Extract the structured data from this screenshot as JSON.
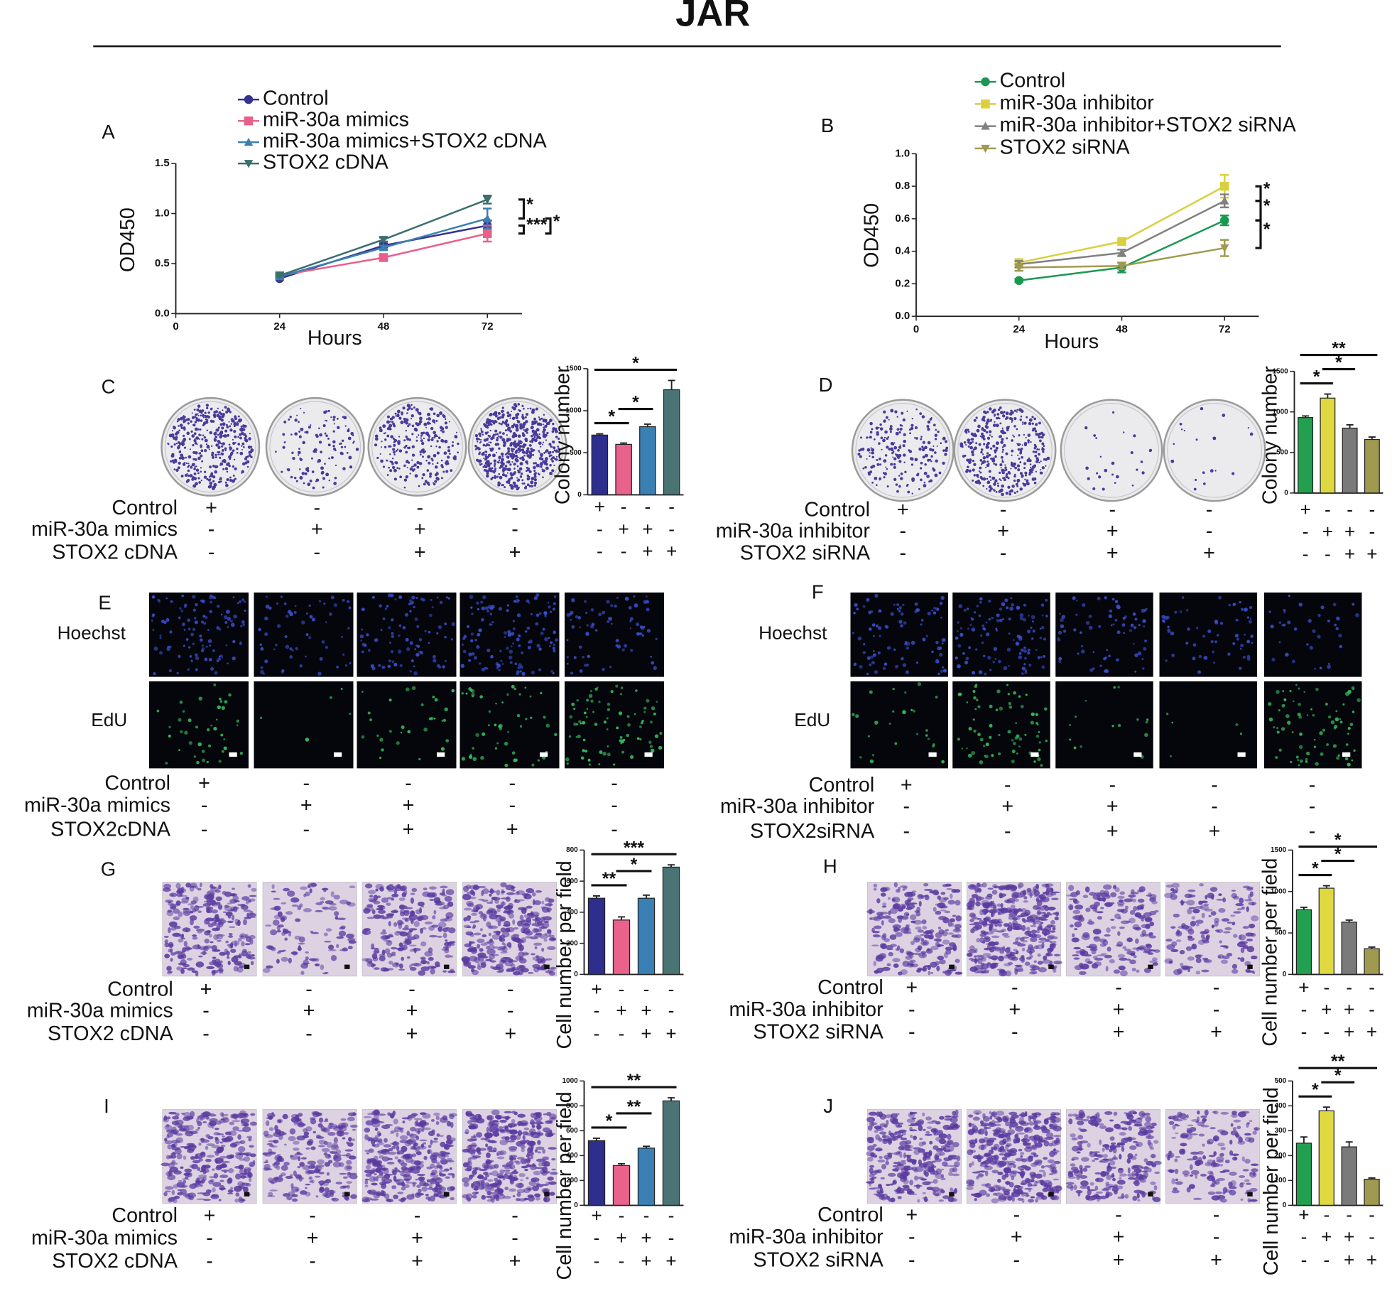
{
  "title": "JAR",
  "chart_data": [
    {
      "type": "line",
      "label": "A",
      "x_label": "Hours",
      "y_label": "OD450",
      "x": [
        24,
        48,
        72
      ],
      "xlim": [
        0,
        80
      ],
      "xticks": [
        0,
        24,
        48,
        72
      ],
      "ylim": [
        0,
        1.5
      ],
      "yticks": [
        {
          "value": 0,
          "label": "0.0"
        },
        {
          "value": 0.5,
          "label": "0.5"
        },
        {
          "value": 1,
          "label": "1.0"
        },
        {
          "value": 1.5,
          "label": "1.5"
        }
      ],
      "series": [
        {
          "name": "Control",
          "color": "#33338f",
          "marker": "circle",
          "values": [
            0.35,
            0.68,
            0.88
          ],
          "errors": [
            0.01,
            0.02,
            0.05
          ]
        },
        {
          "name": "miR-30a mimics",
          "color": "#e8608a",
          "marker": "square",
          "values": [
            0.38,
            0.56,
            0.8
          ],
          "errors": [
            0.01,
            0.02,
            0.08
          ]
        },
        {
          "name": "miR-30a mimics+STOX2 cDNA",
          "color": "#3a80b0",
          "marker": "triangle",
          "values": [
            0.37,
            0.66,
            0.95
          ],
          "errors": [
            0.02,
            0.02,
            0.1
          ]
        },
        {
          "name": "STOX2 cDNA",
          "color": "#3c6e6e",
          "marker": "triangle-down",
          "values": [
            0.38,
            0.74,
            1.14
          ],
          "errors": [
            0.01,
            0.02,
            0.04
          ]
        }
      ],
      "annotations": [
        {
          "text": "*",
          "from": 3,
          "to": 2
        },
        {
          "text": "***",
          "from": 0,
          "to": 1
        },
        {
          "text": "*",
          "from": 2,
          "to": 1
        }
      ]
    },
    {
      "type": "line",
      "label": "B",
      "x_label": "Hours",
      "y_label": "OD450",
      "x": [
        24,
        48,
        72
      ],
      "xlim": [
        0,
        80
      ],
      "xticks": [
        0,
        24,
        48,
        72
      ],
      "ylim": [
        0,
        1
      ],
      "yticks": [
        {
          "value": 0,
          "label": "0.0"
        },
        0.2,
        0.4,
        0.6,
        0.8,
        {
          "value": 1,
          "label": "1.0"
        }
      ],
      "series": [
        {
          "name": "Control",
          "color": "#1a9850",
          "marker": "circle",
          "values": [
            0.22,
            0.3,
            0.59
          ],
          "errors": [
            0.01,
            0.03,
            0.03
          ]
        },
        {
          "name": "miR-30a inhibitor",
          "color": "#d8d040",
          "marker": "square",
          "values": [
            0.33,
            0.46,
            0.8
          ],
          "errors": [
            0.02,
            0.01,
            0.07
          ]
        },
        {
          "name": "miR-30a inhibitor+STOX2 siRNA",
          "color": "#808080",
          "marker": "triangle",
          "values": [
            0.32,
            0.39,
            0.71
          ],
          "errors": [
            0.02,
            0.02,
            0.04
          ]
        },
        {
          "name": "STOX2 siRNA",
          "color": "#a09a50",
          "marker": "triangle-down",
          "values": [
            0.3,
            0.31,
            0.42
          ],
          "errors": [
            0.02,
            0.02,
            0.05
          ]
        }
      ],
      "annotations": [
        {
          "text": "*",
          "from": 1,
          "to": 2
        },
        {
          "text": "*",
          "from": 2,
          "to": 0
        },
        {
          "text": "*",
          "from": 0,
          "to": 3
        }
      ]
    },
    {
      "type": "bar",
      "label": "C",
      "y_label": "Colony number",
      "values": [
        710,
        600,
        810,
        1250
      ],
      "errors": [
        15,
        15,
        30,
        110
      ],
      "colors": [
        "#2e2e8e",
        "#e8628c",
        "#3a80b4",
        "#4a7474"
      ],
      "ylim": [
        0,
        1500
      ],
      "yticks": [
        0,
        500,
        1000,
        1500
      ],
      "conditions": [
        [
          "+",
          "-",
          "-",
          "-"
        ],
        [
          "-",
          "+",
          "+",
          "-"
        ],
        [
          "-",
          "-",
          "+",
          "+"
        ]
      ],
      "annotations": [
        {
          "text": "*",
          "from": 0,
          "to": 1
        },
        {
          "text": "*",
          "from": 1,
          "to": 2
        },
        {
          "text": "*",
          "from": 0,
          "to": 3
        }
      ]
    },
    {
      "type": "bar",
      "label": "D",
      "y_label": "Colony number",
      "values": [
        930,
        1170,
        800,
        660
      ],
      "errors": [
        20,
        50,
        40,
        30
      ],
      "colors": [
        "#22a050",
        "#e0d840",
        "#7a7a7a",
        "#a09a50"
      ],
      "ylim": [
        0,
        1500
      ],
      "yticks": [
        0,
        500,
        1000,
        1500
      ],
      "conditions": [
        [
          "+",
          "-",
          "-",
          "-"
        ],
        [
          "-",
          "+",
          "+",
          "-"
        ],
        [
          "-",
          "-",
          "+",
          "+"
        ]
      ],
      "annotations": [
        {
          "text": "*",
          "from": 0,
          "to": 1
        },
        {
          "text": "*",
          "from": 1,
          "to": 2
        },
        {
          "text": "**",
          "from": 0,
          "to": 3
        }
      ]
    },
    {
      "type": "bar",
      "label": "G",
      "y_label": "Cell number per field",
      "values": [
        490,
        350,
        490,
        690
      ],
      "errors": [
        15,
        20,
        20,
        15
      ],
      "colors": [
        "#2e2e8e",
        "#e8628c",
        "#3a80b4",
        "#4a7474"
      ],
      "ylim": [
        0,
        800
      ],
      "yticks": [
        0,
        200,
        400,
        600,
        800
      ],
      "conditions": [
        [
          "+",
          "-",
          "-",
          "-"
        ],
        [
          "-",
          "+",
          "+",
          "-"
        ],
        [
          "-",
          "-",
          "+",
          "+"
        ]
      ],
      "annotations": [
        {
          "text": "**",
          "from": 0,
          "to": 1
        },
        {
          "text": "*",
          "from": 1,
          "to": 2
        },
        {
          "text": "***",
          "from": 0,
          "to": 3
        }
      ]
    },
    {
      "type": "bar",
      "label": "H",
      "y_label": "Cell number per field",
      "values": [
        780,
        1040,
        630,
        310
      ],
      "errors": [
        30,
        30,
        25,
        20
      ],
      "colors": [
        "#22a050",
        "#e0d840",
        "#7a7a7a",
        "#a09a50"
      ],
      "ylim": [
        0,
        1500
      ],
      "yticks": [
        0,
        500,
        1000,
        1500
      ],
      "conditions": [
        [
          "+",
          "-",
          "-",
          "-"
        ],
        [
          "-",
          "+",
          "+",
          "-"
        ],
        [
          "-",
          "-",
          "+",
          "+"
        ]
      ],
      "annotations": [
        {
          "text": "*",
          "from": 0,
          "to": 1
        },
        {
          "text": "*",
          "from": 1,
          "to": 2
        },
        {
          "text": "*",
          "from": 0,
          "to": 3
        }
      ]
    },
    {
      "type": "bar",
      "label": "I",
      "y_label": "Cell number per field",
      "values": [
        520,
        320,
        460,
        840
      ],
      "errors": [
        20,
        15,
        15,
        25
      ],
      "colors": [
        "#2e2e8e",
        "#e8628c",
        "#3a80b4",
        "#4a7474"
      ],
      "ylim": [
        0,
        1000
      ],
      "yticks": [
        0,
        200,
        400,
        600,
        800,
        1000
      ],
      "conditions": [
        [
          "+",
          "-",
          "-",
          "-"
        ],
        [
          "-",
          "+",
          "+",
          "-"
        ],
        [
          "-",
          "-",
          "+",
          "+"
        ]
      ],
      "annotations": [
        {
          "text": "*",
          "from": 0,
          "to": 1
        },
        {
          "text": "**",
          "from": 1,
          "to": 2
        },
        {
          "text": "**",
          "from": 0,
          "to": 3
        }
      ]
    },
    {
      "type": "bar",
      "label": "J",
      "y_label": "Cell number per field",
      "values": [
        250,
        380,
        235,
        105
      ],
      "errors": [
        25,
        15,
        20,
        5
      ],
      "colors": [
        "#22a050",
        "#e0d840",
        "#7a7a7a",
        "#a09a50"
      ],
      "ylim": [
        0,
        500
      ],
      "yticks": [
        0,
        100,
        200,
        300,
        400,
        500
      ],
      "conditions": [
        [
          "+",
          "-",
          "-",
          "-"
        ],
        [
          "-",
          "+",
          "+",
          "-"
        ],
        [
          "-",
          "-",
          "+",
          "+"
        ]
      ],
      "annotations": [
        {
          "text": "*",
          "from": 0,
          "to": 1
        },
        {
          "text": "*",
          "from": 1,
          "to": 2
        },
        {
          "text": "**",
          "from": 0,
          "to": 3
        }
      ]
    }
  ],
  "panels": [
    {
      "label": "E",
      "rows": [
        "Hoechst",
        "EdU"
      ]
    },
    {
      "label": "F",
      "rows": [
        "Hoechst",
        "EdU"
      ]
    }
  ],
  "tables": [
    {
      "rows": [
        {
          "label": "Control",
          "signs": [
            "+",
            "-",
            "-",
            "-"
          ]
        },
        {
          "label": "miR-30a mimics",
          "signs": [
            "-",
            "+",
            "+",
            "-"
          ]
        },
        {
          "label": "STOX2 cDNA",
          "signs": [
            "-",
            "-",
            "+",
            "+"
          ]
        }
      ]
    },
    {
      "rows": [
        {
          "label": "Control",
          "signs": [
            "+",
            "-",
            "-",
            "-"
          ]
        },
        {
          "label": "miR-30a inhibitor",
          "signs": [
            "-",
            "+",
            "+",
            "-"
          ]
        },
        {
          "label": "STOX2 siRNA",
          "signs": [
            "-",
            "-",
            "+",
            "+"
          ]
        }
      ]
    },
    {
      "rows": [
        {
          "label": "Control",
          "signs": [
            "+",
            "-",
            "-",
            "-",
            "-"
          ]
        },
        {
          "label": "miR-30a mimics",
          "signs": [
            "-",
            "+",
            "+",
            "-",
            "-"
          ]
        },
        {
          "label": "STOX2cDNA",
          "signs": [
            "-",
            "-",
            "+",
            "+",
            "-"
          ]
        }
      ]
    },
    {
      "rows": [
        {
          "label": "Control",
          "signs": [
            "+",
            "-",
            "-",
            "-",
            "-"
          ]
        },
        {
          "label": "miR-30a inhibitor",
          "signs": [
            "-",
            "+",
            "+",
            "-",
            "-"
          ]
        },
        {
          "label": "STOX2siRNA",
          "signs": [
            "-",
            "-",
            "+",
            "+",
            "-"
          ]
        }
      ]
    },
    {
      "rows": [
        {
          "label": "Control",
          "signs": [
            "+",
            "-",
            "-",
            "-"
          ]
        },
        {
          "label": "miR-30a mimics",
          "signs": [
            "-",
            "+",
            "+",
            "-"
          ]
        },
        {
          "label": "STOX2 cDNA",
          "signs": [
            "-",
            "-",
            "+",
            "+"
          ]
        }
      ]
    },
    {
      "rows": [
        {
          "label": "Control",
          "signs": [
            "+",
            "-",
            "-",
            "-"
          ]
        },
        {
          "label": "miR-30a inhibitor",
          "signs": [
            "-",
            "+",
            "+",
            "-"
          ]
        },
        {
          "label": "STOX2 siRNA",
          "signs": [
            "-",
            "-",
            "+",
            "+"
          ]
        }
      ]
    },
    {
      "rows": [
        {
          "label": "Control",
          "signs": [
            "+",
            "-",
            "-",
            "-"
          ]
        },
        {
          "label": "miR-30a mimics",
          "signs": [
            "-",
            "+",
            "+",
            "-"
          ]
        },
        {
          "label": "STOX2 cDNA",
          "signs": [
            "-",
            "-",
            "+",
            "+"
          ]
        }
      ]
    },
    {
      "rows": [
        {
          "label": "Control",
          "signs": [
            "+",
            "-",
            "-",
            "-"
          ]
        },
        {
          "label": "miR-30a inhibitor",
          "signs": [
            "-",
            "+",
            "+",
            "-"
          ]
        },
        {
          "label": "STOX2 siRNA",
          "signs": [
            "-",
            "-",
            "+",
            "+"
          ]
        }
      ]
    }
  ]
}
